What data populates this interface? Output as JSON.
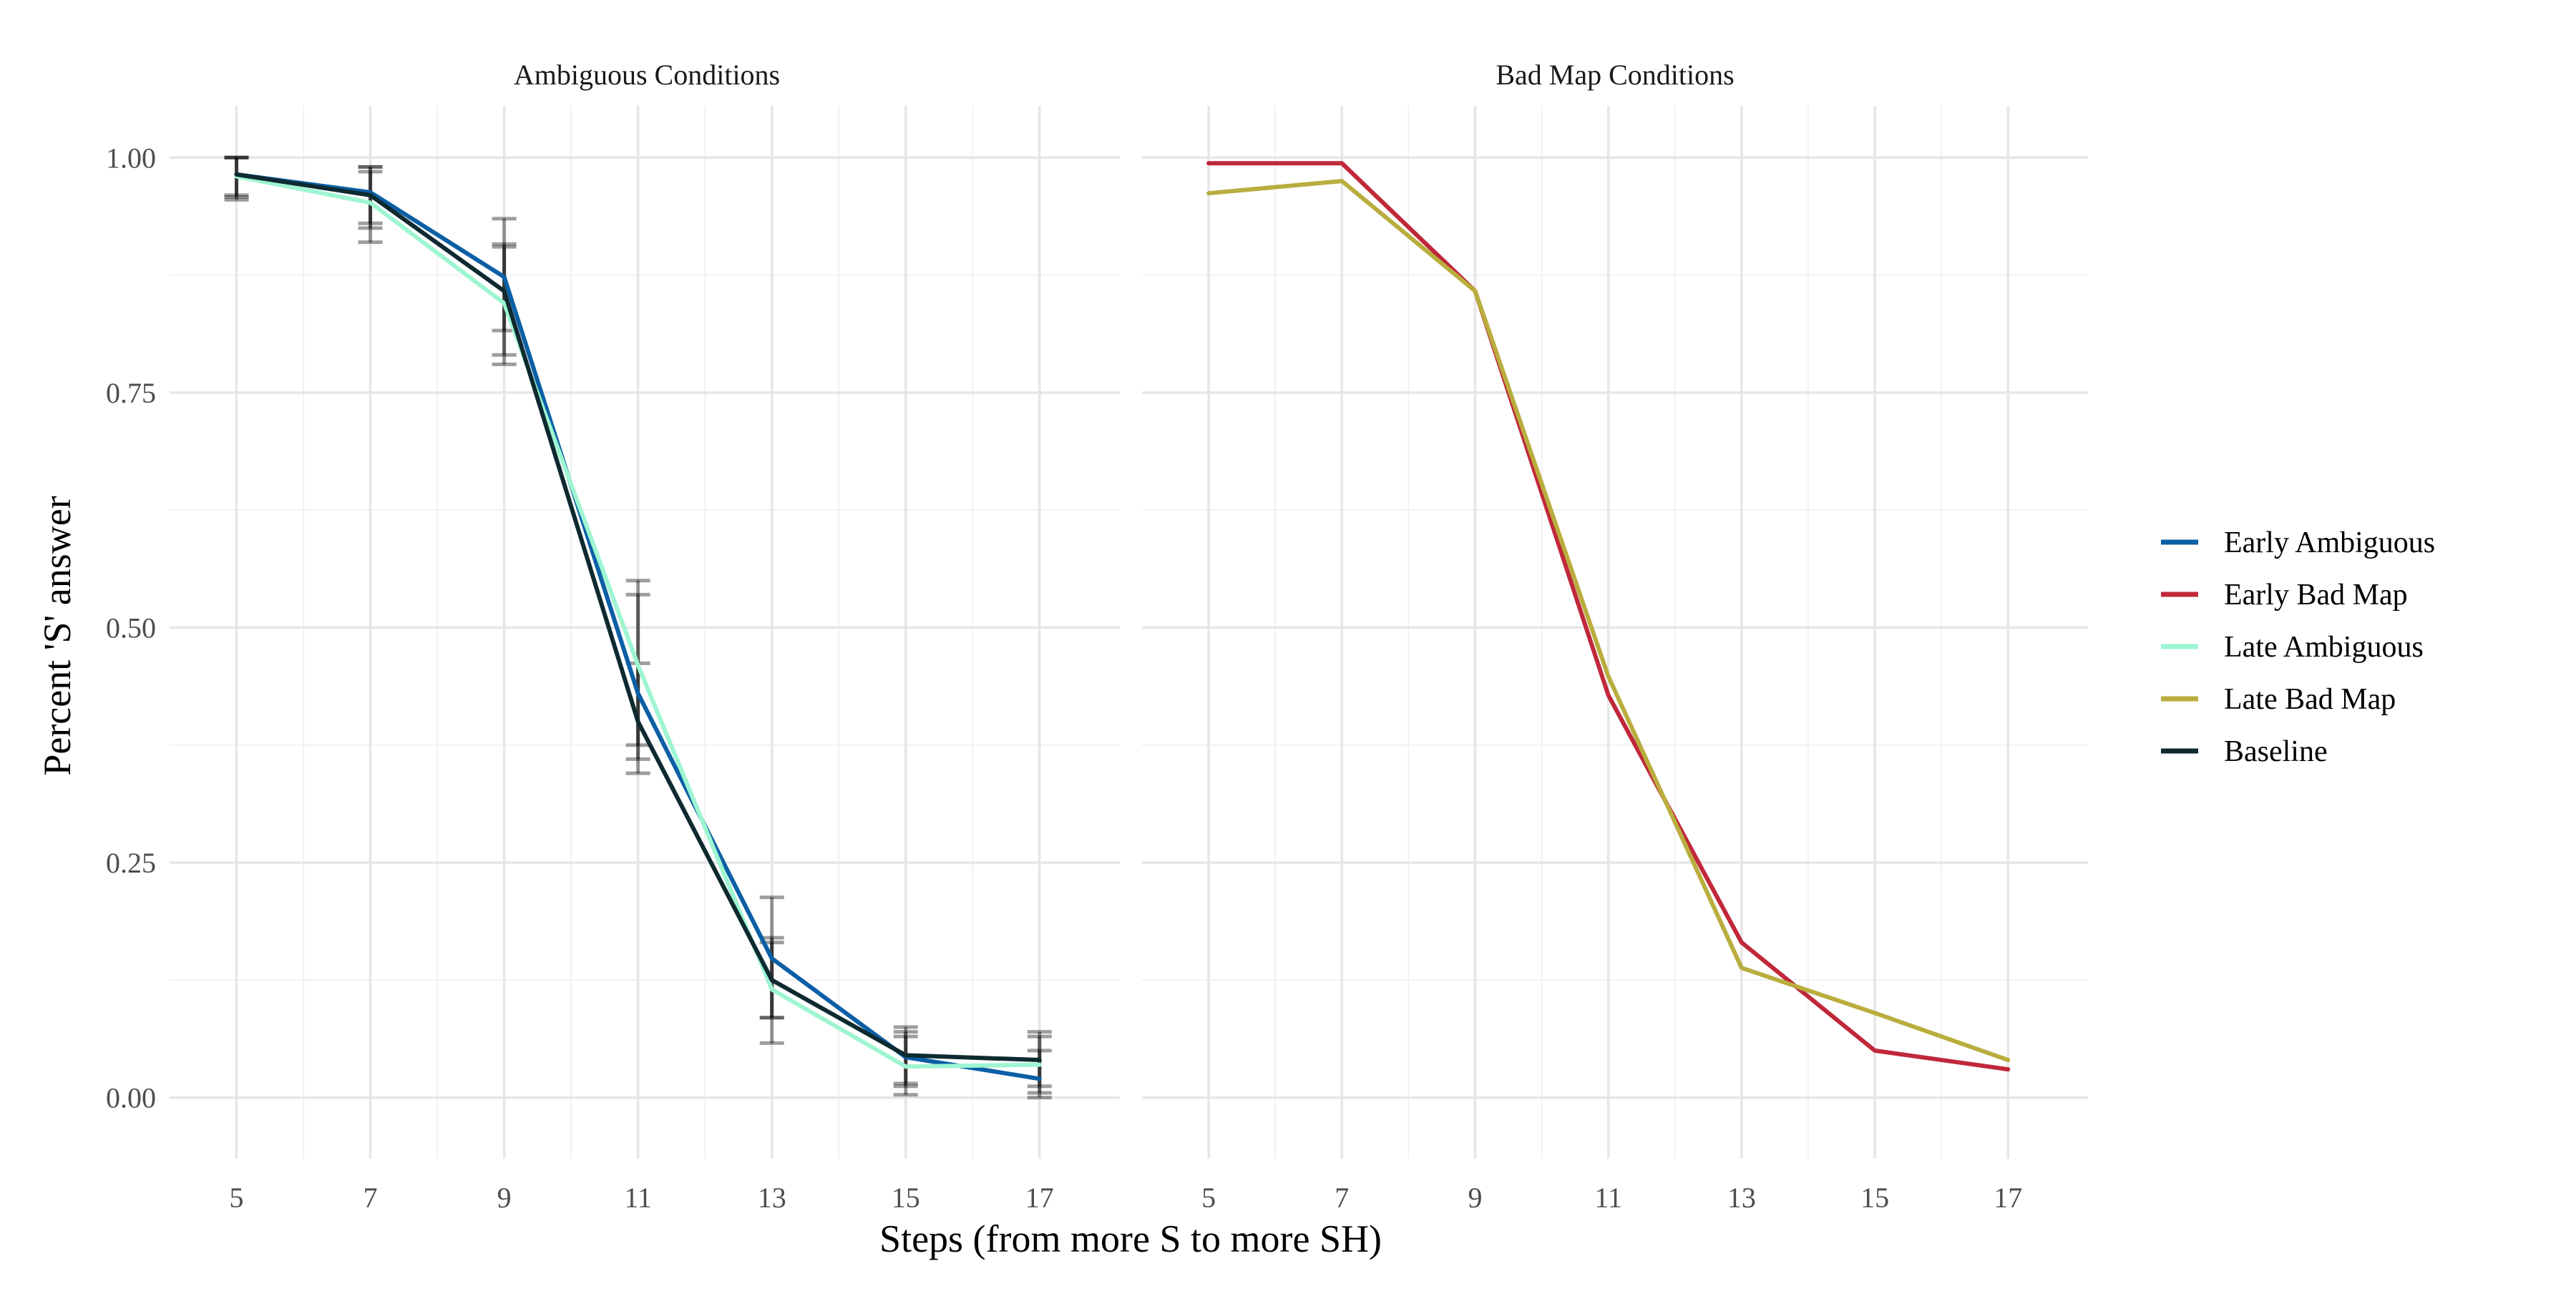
{
  "chart_data": {
    "type": "line",
    "x": [
      5,
      7,
      9,
      11,
      13,
      15,
      17
    ],
    "xlabel": "Steps (from more S to more SH)",
    "ylabel": "Percent 'S' answer",
    "xlim": [
      4,
      18.2
    ],
    "ylim": [
      -0.065,
      1.055
    ],
    "yticks": [
      0,
      0.25,
      0.5,
      0.75,
      1
    ],
    "ytick_labels": [
      "0.00",
      "0.25",
      "0.50",
      "0.75",
      "1.00"
    ],
    "xtick_labels": [
      "5",
      "7",
      "9",
      "11",
      "13",
      "15",
      "17"
    ],
    "grid": true,
    "legend_position": "right",
    "panels": [
      {
        "title": "Ambiguous Conditions",
        "series": [
          {
            "name": "Early Ambiguous",
            "color": "#0b5fa5",
            "values": [
              0.982,
              0.963,
              0.873,
              0.43,
              0.148,
              0.043,
              0.02
            ],
            "err_low": [
              0.958,
              0.925,
              0.816,
              0.36,
              0.085,
              0.012,
              0.0
            ],
            "err_high": [
              1.0,
              0.99,
              0.935,
              0.535,
              0.213,
              0.075,
              0.05
            ]
          },
          {
            "name": "Late Ambiguous",
            "color": "#9ef5d1",
            "values": [
              0.98,
              0.952,
              0.845,
              0.46,
              0.115,
              0.033,
              0.035
            ],
            "err_low": [
              0.955,
              0.91,
              0.78,
              0.375,
              0.058,
              0.003,
              0.005
            ],
            "err_high": [
              1.0,
              0.985,
              0.905,
              0.55,
              0.165,
              0.065,
              0.07
            ]
          },
          {
            "name": "Baseline",
            "color": "#0e2a30",
            "values": [
              0.982,
              0.96,
              0.858,
              0.4,
              0.125,
              0.045,
              0.04
            ],
            "err_low": [
              0.96,
              0.93,
              0.79,
              0.345,
              0.085,
              0.015,
              0.012
            ],
            "err_high": [
              1.0,
              0.99,
              0.908,
              0.462,
              0.17,
              0.07,
              0.065
            ]
          }
        ]
      },
      {
        "title": "Bad Map Conditions",
        "series": [
          {
            "name": "Early Bad Map",
            "color": "#c0283a",
            "values": [
              0.994,
              0.994,
              0.858,
              0.428,
              0.165,
              0.05,
              0.03
            ]
          },
          {
            "name": "Late Bad Map",
            "color": "#b9ad3e",
            "values": [
              0.962,
              0.975,
              0.858,
              0.448,
              0.138,
              0.09,
              0.04
            ]
          }
        ]
      }
    ],
    "legend": [
      {
        "name": "Early Ambiguous",
        "color": "#0b5fa5"
      },
      {
        "name": "Early Bad Map",
        "color": "#c0283a"
      },
      {
        "name": "Late Ambiguous",
        "color": "#9ef5d1"
      },
      {
        "name": "Late Bad Map",
        "color": "#b9ad3e"
      },
      {
        "name": "Baseline",
        "color": "#0e2a30"
      }
    ]
  }
}
